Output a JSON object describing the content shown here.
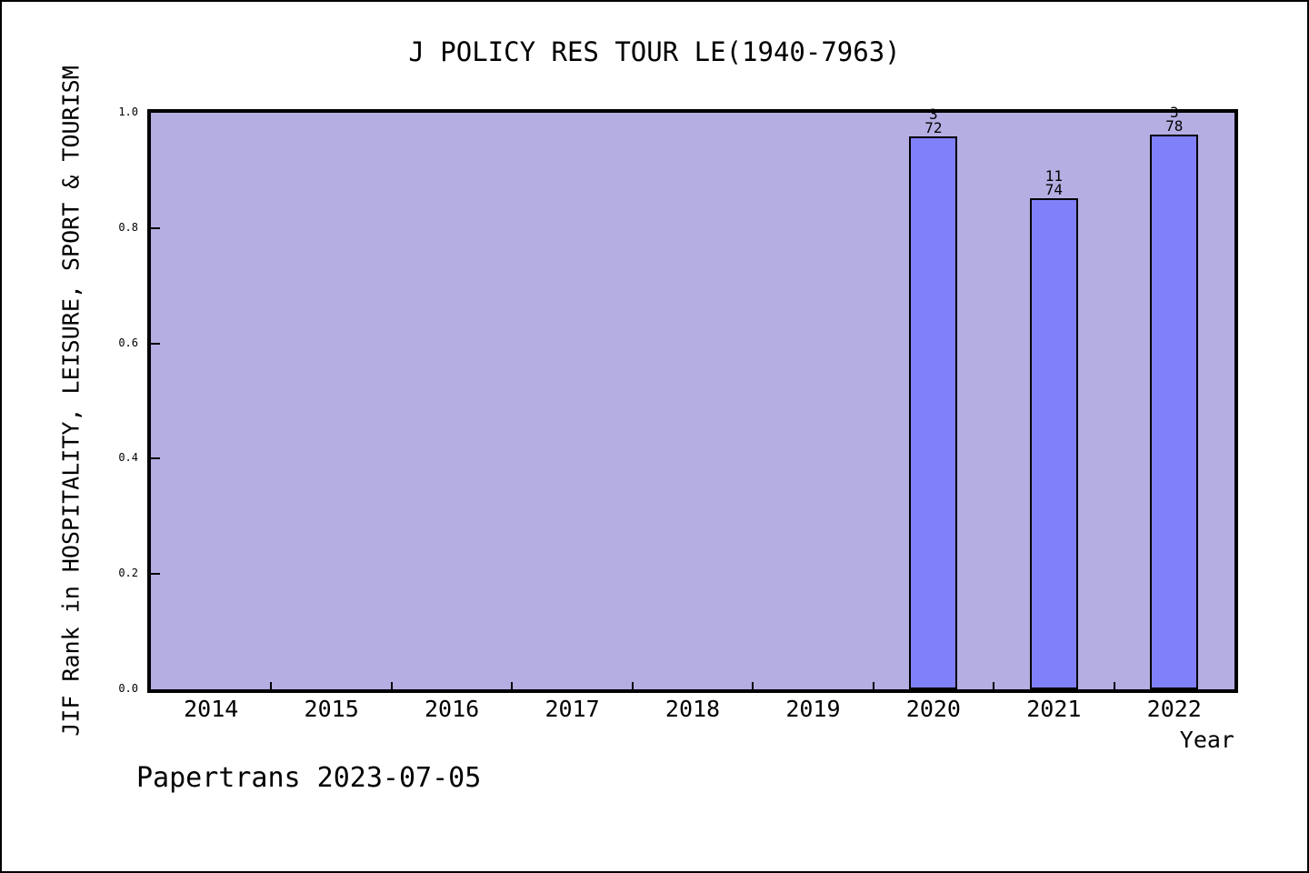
{
  "figure": {
    "watermark": "Papertrans 2023-07-05"
  },
  "chart_data": {
    "type": "bar",
    "title": "J POLICY RES TOUR LE(1940-7963)",
    "xlabel": "Year",
    "ylabel": "JIF Rank in HOSPITALITY, LEISURE, SPORT & TOURISM",
    "categories": [
      "2014",
      "2015",
      "2016",
      "2017",
      "2018",
      "2019",
      "2020",
      "2021",
      "2022"
    ],
    "ylim": [
      0.0,
      1.0
    ],
    "y_ticks": [
      0.0,
      0.2,
      0.4,
      0.6,
      0.8,
      1.0
    ],
    "grid": false,
    "legend": false,
    "bar_width_fraction": 0.4,
    "bars": [
      {
        "category": "2020",
        "rank": "3",
        "total": "72",
        "value": 0.9583
      },
      {
        "category": "2021",
        "rank": "11",
        "total": "74",
        "value": 0.8514
      },
      {
        "category": "2022",
        "rank": "3",
        "total": "78",
        "value": 0.9615
      }
    ],
    "colors": {
      "bar_fill": "#8080fa",
      "bar_edge": "#000000",
      "plot_background": "#b4aee3",
      "figure_background": "#ffffff",
      "text": "#000000"
    }
  }
}
